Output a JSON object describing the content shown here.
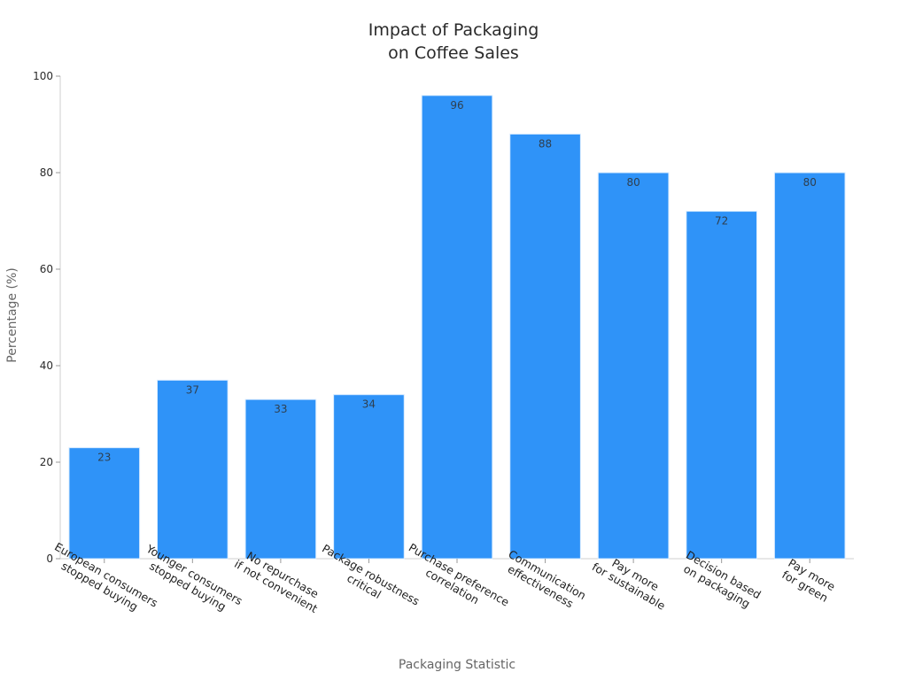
{
  "chart_data": {
    "type": "bar",
    "title": [
      "Impact of Packaging",
      "on Coffee Sales"
    ],
    "xlabel": "Packaging Statistic",
    "ylabel": "Percentage (%)",
    "ylim": [
      0,
      100
    ],
    "yticks": [
      0,
      20,
      40,
      60,
      80,
      100
    ],
    "grid": false,
    "bar_color": "#2f93f8",
    "categories": [
      [
        "European consumers",
        "stopped buying"
      ],
      [
        "Younger consumers",
        "stopped buying"
      ],
      [
        "No repurchase",
        "if not convenient"
      ],
      [
        "Package robustness",
        "critical"
      ],
      [
        "Purchase preference",
        "correlation"
      ],
      [
        "Communication",
        "effectiveness"
      ],
      [
        "Pay more",
        "for sustainable"
      ],
      [
        "Decision based",
        "on packaging"
      ],
      [
        "Pay more",
        "for green"
      ]
    ],
    "values": [
      23,
      37,
      33,
      34,
      96,
      88,
      80,
      72,
      80
    ],
    "data_labels": [
      "23",
      "37",
      "33",
      "34",
      "96",
      "88",
      "80",
      "72",
      "80"
    ]
  }
}
